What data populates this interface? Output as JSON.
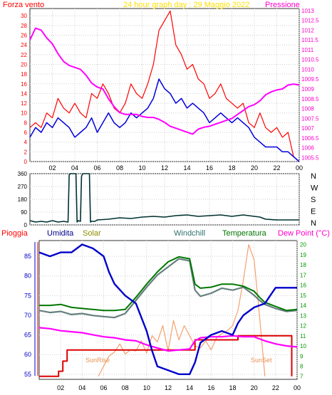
{
  "header": {
    "left_label": "Forza vento",
    "title": "24 hour graph day : 29 Maggio 2022",
    "right_label": "Pressione"
  },
  "colors": {
    "wind_gust": "#ff0000",
    "wind_avg": "#0000dd",
    "pressure": "#ff00ff",
    "wind_dir": "#003030",
    "humidity": "#0000cc",
    "windchill": "#667f7f",
    "temperature": "#007700",
    "dew_point": "#ff00ff",
    "rain": "#dd0000",
    "solar": "#f4a070",
    "title": "#ffe000",
    "axis_left_top": "#ff0000",
    "axis_right_top": "#ff00cc",
    "axis_right_bottom": "#009900"
  },
  "chart_data": [
    {
      "type": "line",
      "title": "24 hour graph day : 29 Maggio 2022",
      "x_ticks": [
        "02",
        "04",
        "06",
        "08",
        "10",
        "12",
        "14",
        "16",
        "18",
        "20",
        "22",
        "00"
      ],
      "left_axis": {
        "label": "Forza vento",
        "ticks": [
          0,
          2,
          4,
          6,
          8,
          10,
          12,
          14,
          16,
          18,
          20,
          22,
          24,
          26,
          28,
          30
        ],
        "ylim": [
          0,
          31.5
        ]
      },
      "right_axis": {
        "label": "Pressione",
        "ticks": [
          1005.5,
          1006,
          1006.5,
          1007,
          1007.5,
          1008,
          1008.5,
          1009,
          1009.5,
          1010,
          1010.5,
          1011,
          1011.5,
          1012,
          1012.5,
          1013
        ],
        "ylim": [
          1005.3,
          1013.1
        ]
      },
      "series": [
        {
          "name": "Wind gust",
          "axis": "left",
          "x": [
            0,
            0.5,
            1,
            1.5,
            2,
            2.5,
            3,
            3.5,
            4,
            4.5,
            5,
            5.5,
            6,
            6.5,
            7,
            7.5,
            8,
            8.5,
            9,
            9.5,
            10,
            10.5,
            11,
            11.5,
            12,
            12.5,
            13,
            13.5,
            14,
            14.5,
            15,
            15.5,
            16,
            16.5,
            17,
            17.5,
            18,
            18.5,
            19,
            19.5,
            20,
            20.5,
            21,
            21.5,
            22,
            22.5,
            23,
            23.5,
            24
          ],
          "y": [
            7,
            8,
            7,
            10,
            9,
            13,
            11,
            10,
            12,
            10,
            9,
            14,
            13,
            16,
            14,
            11,
            10,
            12,
            16,
            14,
            13,
            16,
            20,
            27,
            29,
            31,
            24,
            22,
            19,
            20,
            17,
            16,
            13,
            14,
            16,
            13,
            12,
            11,
            12,
            8,
            7,
            10,
            7,
            6,
            7,
            5,
            6,
            1,
            0
          ]
        },
        {
          "name": "Wind speed",
          "axis": "left",
          "x": [
            0,
            0.5,
            1,
            1.5,
            2,
            2.5,
            3,
            3.5,
            4,
            4.5,
            5,
            5.5,
            6,
            6.5,
            7,
            7.5,
            8,
            8.5,
            9,
            9.5,
            10,
            10.5,
            11,
            11.5,
            12,
            12.5,
            13,
            13.5,
            14,
            14.5,
            15,
            15.5,
            16,
            16.5,
            17,
            17.5,
            18,
            18.5,
            19,
            19.5,
            20,
            20.5,
            21,
            21.5,
            22,
            22.5,
            23,
            23.5,
            24
          ],
          "y": [
            5,
            7,
            6,
            8,
            7,
            9,
            8,
            7,
            5,
            6,
            7,
            9,
            6,
            8,
            10,
            8,
            7,
            8,
            10,
            9,
            10,
            11,
            13,
            17,
            15,
            14,
            12,
            13,
            11,
            12,
            11,
            10,
            8,
            9,
            10,
            9,
            8,
            9,
            8,
            7,
            5,
            4,
            3,
            3,
            3,
            2,
            2,
            1,
            0
          ]
        },
        {
          "name": "Pressione",
          "axis": "right",
          "x": [
            0,
            0.5,
            1,
            1.5,
            2,
            2.5,
            3,
            3.5,
            4,
            4.5,
            5,
            5.5,
            6,
            6.5,
            7,
            7.5,
            8,
            8.5,
            9,
            9.5,
            10,
            10.5,
            11,
            11.5,
            12,
            12.5,
            13,
            13.5,
            14,
            14.5,
            15,
            15.5,
            16,
            16.5,
            17,
            17.5,
            18,
            18.5,
            19,
            19.5,
            20,
            20.5,
            21,
            21.5,
            22,
            22.5,
            23,
            23.5,
            24
          ],
          "y": [
            1011.5,
            1012.1,
            1012,
            1011.6,
            1011.3,
            1010.8,
            1010.4,
            1010.2,
            1010.1,
            1010,
            1009.7,
            1009.3,
            1009.1,
            1009,
            1008.5,
            1008.1,
            1007.8,
            1007.7,
            1007.7,
            1007.7,
            1007.6,
            1007.55,
            1007.55,
            1007.45,
            1007.3,
            1007.1,
            1007,
            1006.9,
            1006.8,
            1006.7,
            1006.95,
            1007.05,
            1007.1,
            1007.2,
            1007.3,
            1007.4,
            1007.5,
            1007.7,
            1007.9,
            1008.1,
            1008.2,
            1008.4,
            1008.7,
            1008.85,
            1008.95,
            1009,
            1009.2,
            1009.25,
            1009.2
          ]
        }
      ]
    },
    {
      "type": "line",
      "x_ticks": [
        "02",
        "04",
        "06",
        "08",
        "10",
        "12",
        "14",
        "16",
        "18",
        "20",
        "22",
        "00"
      ],
      "left_axis": {
        "ticks": [
          0,
          90,
          180,
          270,
          360
        ],
        "ylim": [
          0,
          360
        ]
      },
      "right_labels": [
        "N",
        "W",
        "S",
        "E",
        "N"
      ],
      "series": [
        {
          "name": "Wind direction",
          "x": [
            0,
            0.5,
            1,
            1.5,
            2,
            2.5,
            3,
            3.4,
            3.5,
            3.6,
            4.1,
            4.2,
            4.3,
            4.5,
            4.6,
            4.7,
            5.3,
            5.4,
            5.5,
            5.8,
            5.9,
            6,
            7,
            8,
            9,
            10,
            11,
            12,
            13,
            14,
            15,
            16,
            17,
            18,
            19,
            20,
            20.5,
            21,
            22,
            23,
            24
          ],
          "y": [
            30,
            20,
            25,
            20,
            30,
            20,
            25,
            20,
            350,
            360,
            360,
            20,
            30,
            25,
            340,
            360,
            360,
            20,
            25,
            25,
            30,
            35,
            40,
            50,
            45,
            55,
            60,
            55,
            65,
            70,
            60,
            65,
            70,
            60,
            70,
            60,
            55,
            40,
            35,
            35,
            35
          ]
        }
      ]
    },
    {
      "type": "line",
      "x_ticks": [
        "02",
        "04",
        "06",
        "08",
        "10",
        "12",
        "14",
        "16",
        "18",
        "20",
        "22",
        "00"
      ],
      "left_axis": {
        "label": "Umidita",
        "ticks": [
          55,
          60,
          65,
          70,
          75,
          80,
          85
        ],
        "ylim": [
          53.7,
          89
        ]
      },
      "right_axis": {
        "label": "Temperatura",
        "ticks": [
          7,
          8,
          9,
          10,
          11,
          12,
          13,
          14,
          15,
          16,
          17,
          18,
          19,
          20
        ],
        "ylim": [
          6.7,
          20.4
        ]
      },
      "legend": [
        "Pioggia",
        "Umidita",
        "Solar",
        "Windchill",
        "Temperatura",
        "Dew Point (°C)"
      ],
      "annotations": [
        "SunRise",
        "SunSet"
      ],
      "series": [
        {
          "name": "Umidita",
          "axis": "left",
          "x": [
            0,
            1,
            2,
            3,
            4,
            5,
            6,
            6.5,
            7,
            8,
            9,
            10,
            10.5,
            11,
            12,
            13,
            14,
            14.5,
            15,
            16,
            17,
            18,
            18.5,
            19,
            20,
            21,
            21.5,
            22,
            23,
            24
          ],
          "y": [
            86,
            85,
            86,
            86,
            88,
            87,
            85,
            81,
            78,
            75,
            73,
            66,
            61,
            57,
            56,
            55,
            55,
            58,
            63,
            65,
            66,
            65,
            68,
            70,
            72,
            73,
            75,
            77,
            77,
            77
          ]
        },
        {
          "name": "Windchill",
          "axis": "right",
          "x": [
            0,
            1,
            2,
            3,
            4,
            5,
            6,
            7,
            8,
            9,
            10,
            11,
            12,
            13,
            14,
            14.5,
            15,
            16,
            17,
            18,
            19,
            20,
            20.5,
            21,
            22,
            23,
            24
          ],
          "y": [
            13.5,
            13.3,
            13.4,
            13.1,
            13.2,
            13,
            12.9,
            12.8,
            13.2,
            14.5,
            15.8,
            17,
            17.8,
            18.6,
            18.4,
            15.5,
            14.9,
            15.2,
            15.7,
            15.5,
            15.8,
            15,
            14.5,
            14.1,
            13.7,
            13.4,
            13.5
          ]
        },
        {
          "name": "Temperatura",
          "axis": "right",
          "x": [
            0,
            1,
            2,
            3,
            4,
            5,
            6,
            7,
            8,
            9,
            10,
            11,
            12,
            13,
            14,
            14.5,
            15,
            16,
            17,
            18,
            19,
            20,
            20.5,
            21,
            22,
            23,
            24
          ],
          "y": [
            14,
            14,
            14.1,
            13.8,
            13.7,
            13.6,
            13.5,
            13.5,
            13.6,
            14.8,
            16.1,
            17.3,
            18.3,
            18.8,
            18.6,
            16.1,
            15.7,
            15.8,
            16.1,
            16.1,
            15.9,
            15.4,
            14.8,
            14.3,
            13.9,
            13.5,
            13.6
          ]
        },
        {
          "name": "Dew Point (°C)",
          "axis": "right",
          "x": [
            0,
            1,
            2,
            3,
            4,
            5,
            6,
            7,
            8,
            9,
            10,
            11,
            12,
            13,
            14,
            14.5,
            15,
            16,
            17,
            18,
            19,
            20,
            20.5,
            21,
            22,
            23,
            24
          ],
          "y": [
            11.8,
            11.7,
            11.5,
            11.4,
            11.3,
            11.1,
            10.9,
            10.8,
            10.6,
            10.5,
            10.1,
            9.8,
            9.5,
            9.6,
            9.7,
            10.5,
            10.8,
            10.9,
            10.9,
            11,
            10.9,
            10.9,
            10.7,
            10.5,
            10.2,
            10,
            9.9
          ]
        },
        {
          "name": "Pioggia",
          "axis": "right",
          "x": [
            0,
            1.8,
            1.8,
            2.2,
            2.2,
            2.6,
            2.6,
            10.5,
            10.5,
            14.5,
            14.5,
            18.5,
            18.5,
            20.5,
            20.5,
            23.5,
            23.5
          ],
          "y": [
            7,
            7,
            7.5,
            7.5,
            8.5,
            8.5,
            9.6,
            9.6,
            9.6,
            9.6,
            10.6,
            10.6,
            11,
            11,
            11,
            11,
            7
          ]
        },
        {
          "name": "Solar",
          "axis": "right",
          "x": [
            5.5,
            6,
            6.5,
            7,
            7.5,
            8,
            8.5,
            9,
            9.5,
            10,
            10.5,
            11,
            11.5,
            12,
            12.5,
            13,
            13.5,
            14,
            14.5,
            15,
            15.5,
            16,
            16.5,
            17,
            17.5,
            18,
            18.5,
            19,
            19.5,
            20,
            20.5,
            21
          ],
          "y": [
            7,
            8,
            9,
            9.4,
            10.2,
            9.2,
            9.6,
            9.5,
            10.5,
            9.3,
            11,
            10.4,
            12,
            9.5,
            12.5,
            10.6,
            12,
            11,
            10,
            9.8,
            10.5,
            9.6,
            10.8,
            11.2,
            11.5,
            12,
            13.5,
            16.5,
            20,
            18.5,
            13,
            7
          ]
        }
      ]
    }
  ],
  "panel2": {
    "right_labels": [
      "N",
      "W",
      "S",
      "E",
      "N"
    ]
  },
  "panel3": {
    "legend": {
      "rain": "Pioggia",
      "humidity": "Umidita",
      "solar": "Solar",
      "windchill": "Windchill",
      "temperature": "Temperatura",
      "dew_point": "Dew Point (°C)"
    },
    "sunrise": "SunRise",
    "sunset": "SunSet"
  }
}
